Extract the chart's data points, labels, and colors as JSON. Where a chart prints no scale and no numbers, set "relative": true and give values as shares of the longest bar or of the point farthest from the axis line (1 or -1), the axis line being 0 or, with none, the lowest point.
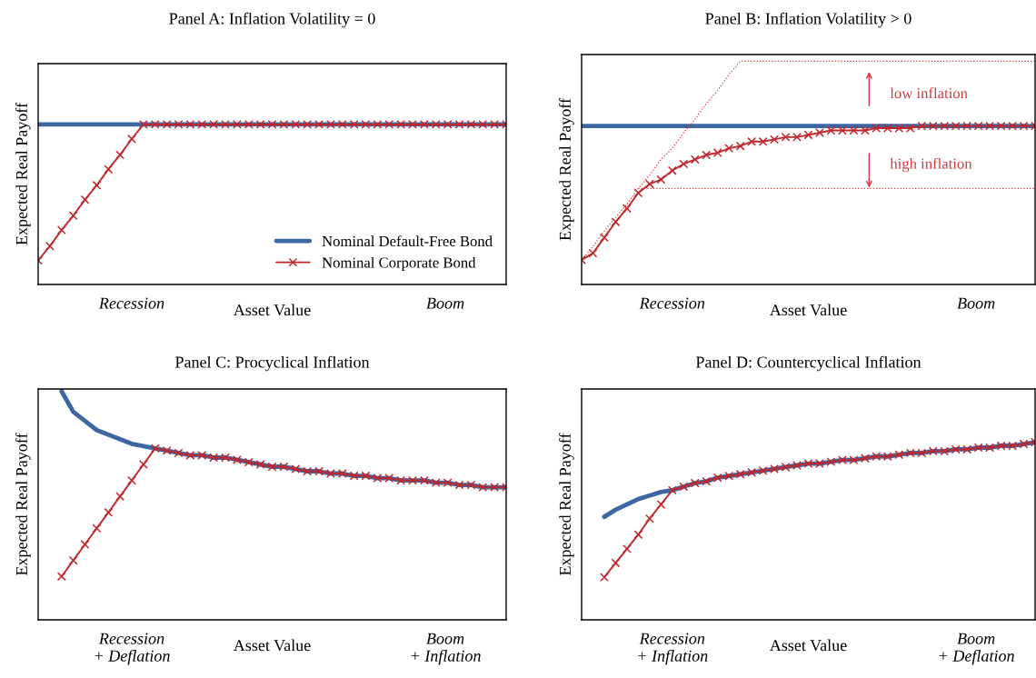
{
  "chart_data": [
    {
      "type": "line",
      "title": "Panel A: Inflation Volatility = 0",
      "xlabel": "Asset Value",
      "ylabel": "Expected Real Payoff",
      "relative": true,
      "legend": "bottom right",
      "annotations": [
        "Recession",
        "Boom"
      ],
      "categories": [
        null,
        null,
        null,
        null,
        null,
        null,
        null,
        null,
        null,
        null,
        null,
        null,
        null,
        null,
        null,
        null,
        null,
        null,
        null,
        null,
        null,
        null,
        null,
        null,
        null,
        null,
        null,
        null,
        null,
        null,
        null,
        null,
        null,
        null,
        null,
        null,
        null,
        null,
        null,
        null,
        null
      ],
      "series": [
        {
          "name": "Nominal Default-Free Bond",
          "color": "#3d67a3",
          "marker": "none",
          "values": [
            1,
            1,
            1,
            1,
            1,
            1,
            1,
            1,
            1,
            1,
            1,
            1,
            1,
            1,
            1,
            1,
            1,
            1,
            1,
            1,
            1,
            1,
            1,
            1,
            1,
            1,
            1,
            1,
            1,
            1,
            1,
            1,
            1,
            1,
            1,
            1,
            1,
            1,
            1,
            1,
            1
          ]
        },
        {
          "name": "Nominal Corporate Bond",
          "color": "#c0282d",
          "marker": "cross",
          "values": [
            0.15,
            0.24,
            0.34,
            0.43,
            0.53,
            0.62,
            0.72,
            0.81,
            0.91,
            1,
            1,
            1,
            1,
            1,
            1,
            1,
            1,
            1,
            1,
            1,
            1,
            1,
            1,
            1,
            1,
            1,
            1,
            1,
            1,
            1,
            1,
            1,
            1,
            1,
            1,
            1,
            1,
            1,
            1,
            1,
            1
          ]
        }
      ]
    },
    {
      "type": "line",
      "title": "Panel B: Inflation Volatility > 0",
      "xlabel": "Asset Value",
      "ylabel": "Expected Real Payoff",
      "relative": true,
      "annotations": [
        "Recession",
        "Boom",
        "low inflation",
        "high inflation"
      ],
      "categories": [
        null,
        null,
        null,
        null,
        null,
        null,
        null,
        null,
        null,
        null,
        null,
        null,
        null,
        null,
        null,
        null,
        null,
        null,
        null,
        null,
        null,
        null,
        null,
        null,
        null,
        null,
        null,
        null,
        null,
        null,
        null,
        null,
        null,
        null,
        null,
        null,
        null,
        null,
        null,
        null,
        null
      ],
      "series": [
        {
          "color": "#3d67a3",
          "marker": "none",
          "values": [
            0.71,
            0.71,
            0.71,
            0.71,
            0.71,
            0.71,
            0.71,
            0.71,
            0.71,
            0.71,
            0.71,
            0.71,
            0.71,
            0.71,
            0.71,
            0.71,
            0.71,
            0.71,
            0.71,
            0.71,
            0.71,
            0.71,
            0.71,
            0.71,
            0.71,
            0.71,
            0.71,
            0.71,
            0.71,
            0.71,
            0.71,
            0.71,
            0.71,
            0.71,
            0.71,
            0.71,
            0.71,
            0.71,
            0.71,
            0.71,
            0.71
          ]
        },
        {
          "color": "#c0282d",
          "marker": "cross",
          "values": [
            0.11,
            0.14,
            0.21,
            0.28,
            0.34,
            0.41,
            0.45,
            0.47,
            0.51,
            0.54,
            0.56,
            0.58,
            0.59,
            0.61,
            0.62,
            0.64,
            0.64,
            0.65,
            0.66,
            0.66,
            0.67,
            0.68,
            0.69,
            0.69,
            0.69,
            0.69,
            0.7,
            0.7,
            0.7,
            0.7,
            0.71,
            0.71,
            0.71,
            0.71,
            0.71,
            0.71,
            0.71,
            0.71,
            0.71,
            0.71,
            0.71
          ]
        },
        {
          "color": "#d0393e",
          "marker": "none",
          "line_style": "dotted",
          "values": [
            0.11,
            0.17,
            0.24,
            0.3,
            0.36,
            0.43,
            0.49,
            0.56,
            0.61,
            0.68,
            0.74,
            0.81,
            0.87,
            0.94,
            1,
            1,
            1,
            1,
            1,
            1,
            1,
            1,
            1,
            1,
            1,
            1,
            1,
            1,
            1,
            1,
            1,
            1,
            1,
            1,
            1,
            1,
            1,
            1,
            1,
            1,
            1
          ]
        },
        {
          "color": "#d0393e",
          "marker": "none",
          "line_style": "dotted",
          "values": [
            null,
            null,
            null,
            null,
            null,
            0.43,
            0.43,
            0.43,
            0.43,
            0.43,
            0.43,
            0.43,
            0.43,
            0.43,
            0.43,
            0.43,
            0.43,
            0.43,
            0.43,
            0.43,
            0.43,
            0.43,
            0.43,
            0.43,
            0.43,
            0.43,
            0.43,
            0.43,
            0.43,
            0.43,
            0.43,
            0.43,
            0.43,
            0.43,
            0.43,
            0.43,
            0.43,
            0.43,
            0.43,
            0.43,
            0.43
          ]
        }
      ]
    },
    {
      "type": "line",
      "title": "Panel C: Procyclical Inflation",
      "xlabel": "Asset Value",
      "ylabel": "Expected Real Payoff",
      "relative": true,
      "annotations": [
        "Recession\n+ Deflation",
        "Boom\n+ Inflation"
      ],
      "categories": [
        null,
        null,
        null,
        null,
        null,
        null,
        null,
        null,
        null,
        null,
        null,
        null,
        null,
        null,
        null,
        null,
        null,
        null,
        null,
        null,
        null,
        null,
        null,
        null,
        null,
        null,
        null,
        null,
        null,
        null,
        null,
        null,
        null,
        null,
        null,
        null,
        null,
        null,
        null,
        null,
        null
      ],
      "series": [
        {
          "color": "#3d67a3",
          "marker": "none",
          "values": [
            null,
            null,
            1.0,
            0.91,
            0.87,
            0.83,
            0.81,
            0.79,
            0.77,
            0.76,
            0.75,
            0.74,
            0.73,
            0.72,
            0.72,
            0.71,
            0.71,
            0.7,
            0.69,
            0.68,
            0.67,
            0.67,
            0.66,
            0.65,
            0.65,
            0.64,
            0.64,
            0.63,
            0.63,
            0.62,
            0.62,
            0.61,
            0.61,
            0.61,
            0.6,
            0.6,
            0.59,
            0.59,
            0.58,
            0.58,
            0.58
          ]
        },
        {
          "color": "#c0282d",
          "marker": "cross",
          "values": [
            null,
            null,
            0.19,
            0.26,
            0.33,
            0.4,
            0.47,
            0.54,
            0.61,
            0.68,
            0.75,
            0.74,
            0.73,
            0.72,
            0.72,
            0.71,
            0.71,
            0.7,
            0.69,
            0.68,
            0.67,
            0.67,
            0.66,
            0.65,
            0.65,
            0.64,
            0.64,
            0.63,
            0.63,
            0.62,
            0.62,
            0.61,
            0.61,
            0.61,
            0.6,
            0.6,
            0.59,
            0.59,
            0.58,
            0.58,
            0.58
          ]
        }
      ]
    },
    {
      "type": "line",
      "title": "Panel D: Countercyclical Inflation",
      "xlabel": "Asset Value",
      "ylabel": "Expected Real Payoff",
      "relative": true,
      "annotations": [
        "Recession\n+ Inflation",
        "Boom\n+ Deflation"
      ],
      "categories": [
        null,
        null,
        null,
        null,
        null,
        null,
        null,
        null,
        null,
        null,
        null,
        null,
        null,
        null,
        null,
        null,
        null,
        null,
        null,
        null,
        null,
        null,
        null,
        null,
        null,
        null,
        null,
        null,
        null,
        null,
        null,
        null,
        null,
        null,
        null,
        null,
        null,
        null,
        null,
        null,
        null
      ],
      "series": [
        {
          "color": "#3d67a3",
          "marker": "none",
          "values": [
            null,
            null,
            0.58,
            0.62,
            0.65,
            0.68,
            0.7,
            0.72,
            0.73,
            0.75,
            0.77,
            0.78,
            0.8,
            0.81,
            0.82,
            0.83,
            0.84,
            0.85,
            0.86,
            0.87,
            0.88,
            0.88,
            0.89,
            0.9,
            0.9,
            0.91,
            0.92,
            0.92,
            0.93,
            0.94,
            0.94,
            0.95,
            0.95,
            0.96,
            0.96,
            0.97,
            0.97,
            0.98,
            0.98,
            0.99,
            1.0
          ]
        },
        {
          "color": "#c0282d",
          "marker": "cross",
          "values": [
            null,
            null,
            0.24,
            0.32,
            0.4,
            0.48,
            0.57,
            0.65,
            0.73,
            0.75,
            0.77,
            0.78,
            0.8,
            0.81,
            0.82,
            0.83,
            0.84,
            0.85,
            0.86,
            0.87,
            0.88,
            0.88,
            0.89,
            0.9,
            0.9,
            0.91,
            0.92,
            0.92,
            0.93,
            0.94,
            0.94,
            0.95,
            0.95,
            0.96,
            0.96,
            0.97,
            0.97,
            0.98,
            0.98,
            0.99,
            1.0
          ]
        }
      ]
    }
  ]
}
